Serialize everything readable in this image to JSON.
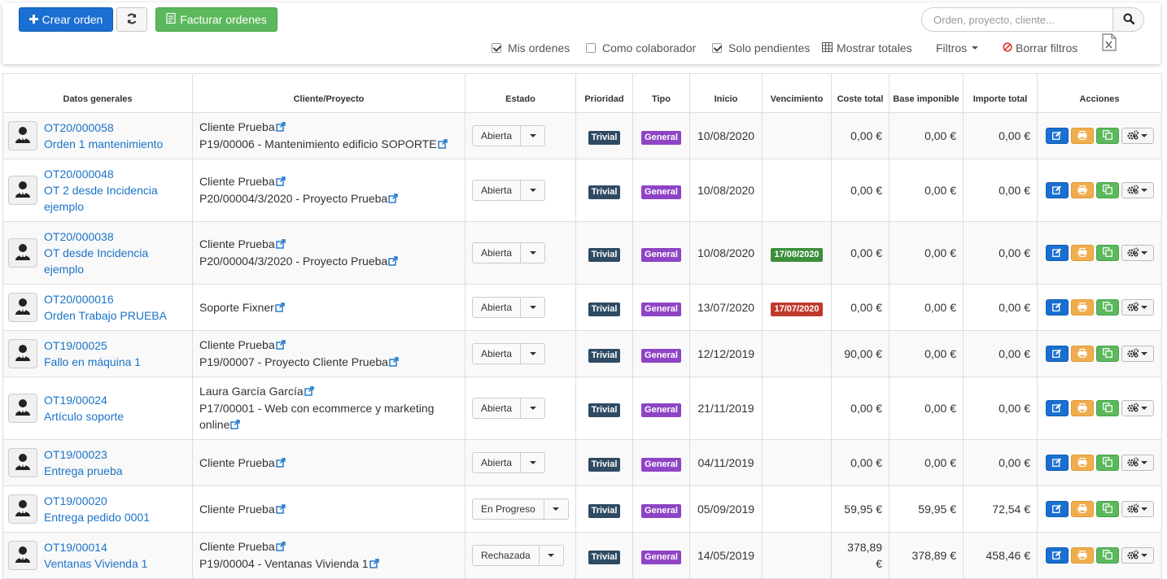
{
  "toolbar": {
    "create_label": "Crear orden",
    "invoice_label": "Facturar ordenes",
    "search_placeholder": "Orden, proyecto, cliente..."
  },
  "filters": {
    "mis_ordenes": {
      "label": "Mis ordenes",
      "checked": true
    },
    "como_colaborador": {
      "label": "Como colaborador",
      "checked": false
    },
    "solo_pendientes": {
      "label": "Solo pendientes",
      "checked": true
    },
    "mostrar_totales": "Mostrar totales",
    "filtros": "Filtros",
    "borrar_filtros": "Borrar filtros"
  },
  "columns": {
    "datos": "Datos generales",
    "cliente": "Cliente/Proyecto",
    "estado": "Estado",
    "prioridad": "Prioridad",
    "tipo": "Tipo",
    "inicio": "Inicio",
    "vencimiento": "Vencimiento",
    "coste": "Coste total",
    "base": "Base imponible",
    "importe": "Importe total",
    "acciones": "Acciones"
  },
  "colors": {
    "primary": "#1a6fd1",
    "success": "#5cb85c",
    "warning": "#f0ad4e",
    "link": "#1a73c8",
    "priority_badge": "#2f4a63",
    "type_badge": "#8e44c4",
    "due_ok": "#3c8f3c",
    "due_overdue": "#c0392b"
  },
  "rows": [
    {
      "code": "OT20/000058",
      "name": "Orden 1 mantenimiento",
      "client": "Cliente Prueba",
      "project": "P19/00006 - Mantenimiento edificio SOPORTE",
      "estado": "Abierta",
      "prioridad": "Trivial",
      "tipo": "General",
      "inicio": "10/08/2020",
      "vencimiento": "",
      "venc_status": "",
      "coste": "0,00 €",
      "base": "0,00 €",
      "importe": "0,00 €"
    },
    {
      "code": "OT20/000048",
      "name": "OT 2 desde Incidencia ejemplo",
      "client": "Cliente Prueba",
      "project": "P20/00004/3/2020 - Proyecto Prueba",
      "estado": "Abierta",
      "prioridad": "Trivial",
      "tipo": "General",
      "inicio": "10/08/2020",
      "vencimiento": "",
      "venc_status": "",
      "coste": "0,00 €",
      "base": "0,00 €",
      "importe": "0,00 €"
    },
    {
      "code": "OT20/000038",
      "name": "OT desde Incidencia ejemplo",
      "client": "Cliente Prueba",
      "project": "P20/00004/3/2020 - Proyecto Prueba",
      "estado": "Abierta",
      "prioridad": "Trivial",
      "tipo": "General",
      "inicio": "10/08/2020",
      "vencimiento": "17/08/2020",
      "venc_status": "green",
      "coste": "0,00 €",
      "base": "0,00 €",
      "importe": "0,00 €"
    },
    {
      "code": "OT20/000016",
      "name": "Orden Trabajo PRUEBA",
      "client": "Soporte Fixner",
      "project": "",
      "estado": "Abierta",
      "prioridad": "Trivial",
      "tipo": "General",
      "inicio": "13/07/2020",
      "vencimiento": "17/07/2020",
      "venc_status": "red",
      "coste": "0,00 €",
      "base": "0,00 €",
      "importe": "0,00 €"
    },
    {
      "code": "OT19/00025",
      "name": "Fallo en máquina 1",
      "client": "Cliente Prueba",
      "project": "P19/00007 - Proyecto Cliente Prueba",
      "estado": "Abierta",
      "prioridad": "Trivial",
      "tipo": "General",
      "inicio": "12/12/2019",
      "vencimiento": "",
      "venc_status": "",
      "coste": "90,00 €",
      "base": "0,00 €",
      "importe": "0,00 €"
    },
    {
      "code": "OT19/00024",
      "name": "Artículo soporte",
      "client": "Laura García García",
      "project": "P17/00001 - Web con ecommerce y marketing online",
      "estado": "Abierta",
      "prioridad": "Trivial",
      "tipo": "General",
      "inicio": "21/11/2019",
      "vencimiento": "",
      "venc_status": "",
      "coste": "0,00 €",
      "base": "0,00 €",
      "importe": "0,00 €"
    },
    {
      "code": "OT19/00023",
      "name": "Entrega prueba",
      "client": "Cliente Prueba",
      "project": "",
      "estado": "Abierta",
      "prioridad": "Trivial",
      "tipo": "General",
      "inicio": "04/11/2019",
      "vencimiento": "",
      "venc_status": "",
      "coste": "0,00 €",
      "base": "0,00 €",
      "importe": "0,00 €"
    },
    {
      "code": "OT19/00020",
      "name": "Entrega pedido 0001",
      "client": "Cliente Prueba",
      "project": "",
      "estado": "En Progreso",
      "prioridad": "Trivial",
      "tipo": "General",
      "inicio": "05/09/2019",
      "vencimiento": "",
      "venc_status": "",
      "coste": "59,95 €",
      "base": "59,95 €",
      "importe": "72,54 €"
    },
    {
      "code": "OT19/00014",
      "name": "Ventanas Vivienda 1",
      "client": "Cliente Prueba",
      "project": "P19/00004 - Ventanas Vivienda 1",
      "estado": "Rechazada",
      "prioridad": "Trivial",
      "tipo": "General",
      "inicio": "14/05/2019",
      "vencimiento": "",
      "venc_status": "",
      "coste": "378,89 €",
      "base": "378,89 €",
      "importe": "458,46 €"
    }
  ]
}
